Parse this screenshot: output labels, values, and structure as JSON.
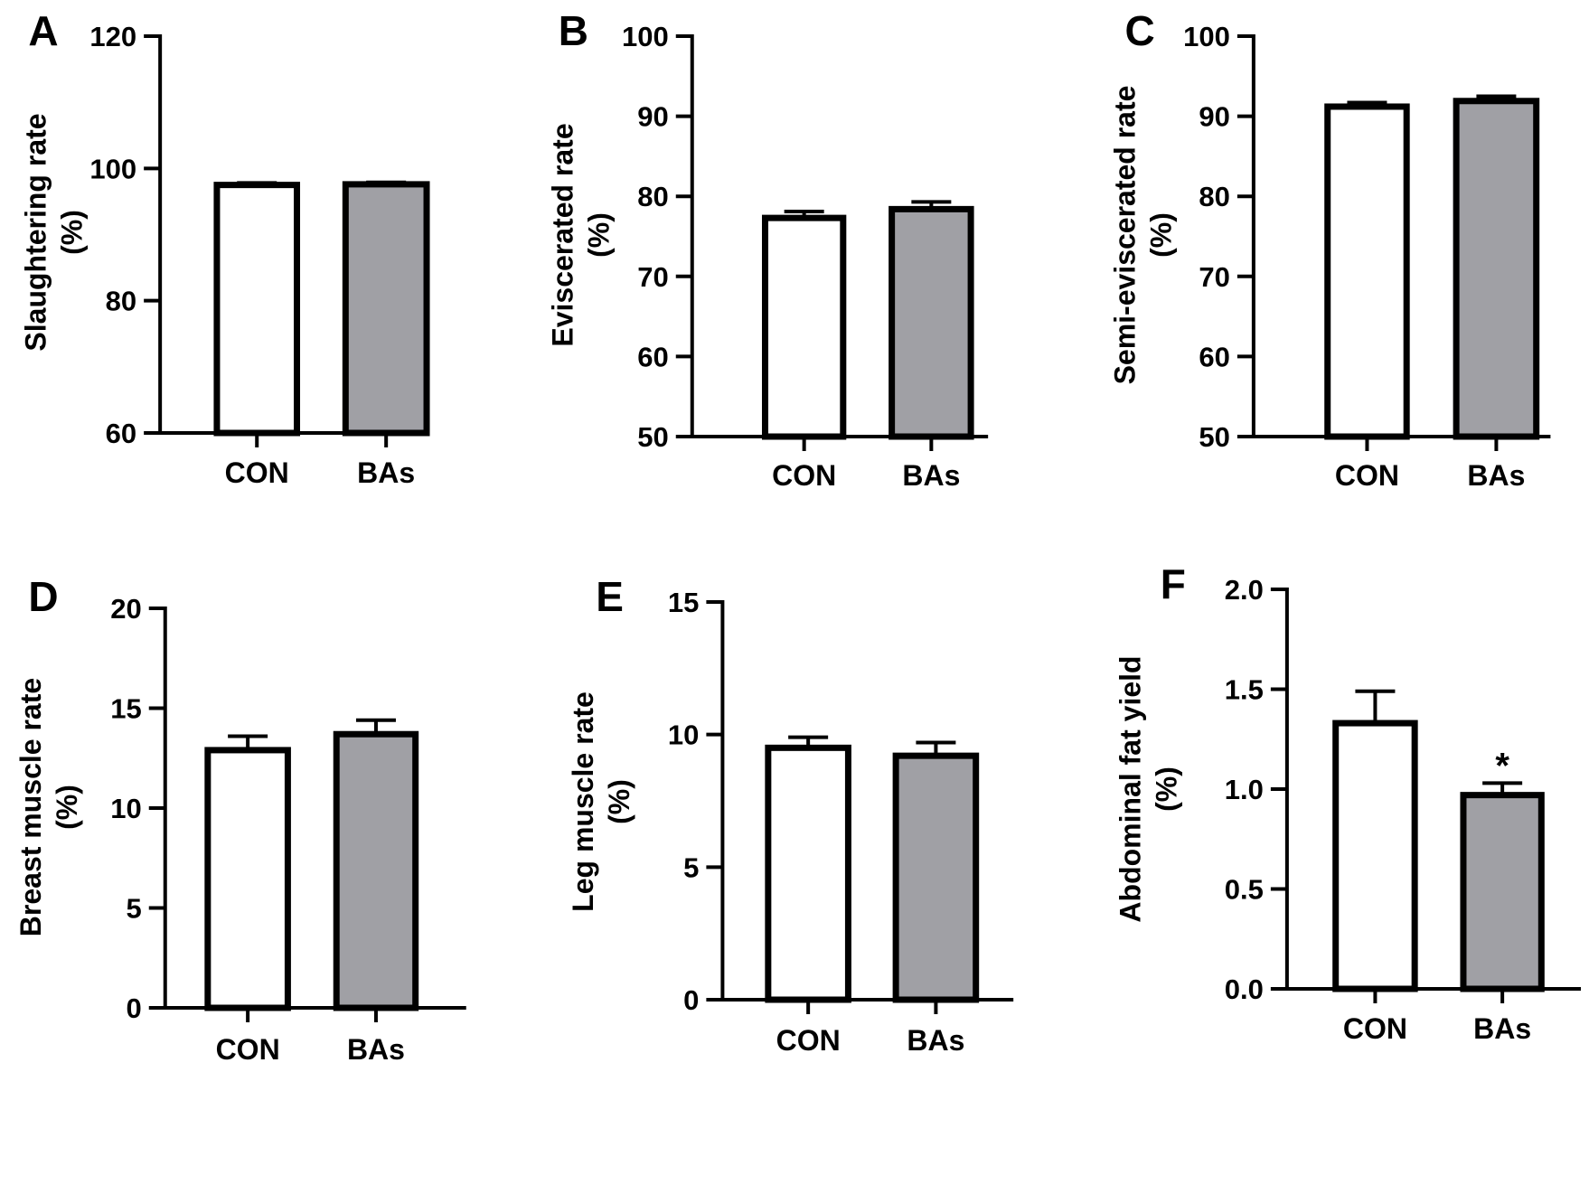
{
  "colors": {
    "con_fill": "#ffffff",
    "bas_fill": "#a0a0a5",
    "stroke": "#000000"
  },
  "chart_data": [
    {
      "panel": "A",
      "type": "bar",
      "ylabel": [
        "Slaughtering rate",
        "(%)"
      ],
      "categories": [
        "CON",
        "BAs"
      ],
      "values": [
        97.5,
        97.6
      ],
      "errors": [
        0.3,
        0.3
      ],
      "ylim": [
        60,
        120
      ],
      "yticks": [
        60,
        80,
        100,
        120
      ],
      "annotations": [
        "",
        ""
      ]
    },
    {
      "panel": "B",
      "type": "bar",
      "ylabel": [
        "Eviscerated rate",
        "(%)"
      ],
      "categories": [
        "CON",
        "BAs"
      ],
      "values": [
        77.3,
        78.4
      ],
      "errors": [
        0.8,
        0.9
      ],
      "ylim": [
        50,
        100
      ],
      "yticks": [
        50,
        60,
        70,
        80,
        90,
        100
      ],
      "annotations": [
        "",
        ""
      ]
    },
    {
      "panel": "C",
      "type": "bar",
      "ylabel": [
        "Semi-eviscerated rate",
        "(%)"
      ],
      "categories": [
        "CON",
        "BAs"
      ],
      "values": [
        91.2,
        91.9
      ],
      "errors": [
        0.5,
        0.6
      ],
      "ylim": [
        50,
        100
      ],
      "yticks": [
        50,
        60,
        70,
        80,
        90,
        100
      ],
      "annotations": [
        "",
        ""
      ]
    },
    {
      "panel": "D",
      "type": "bar",
      "ylabel": [
        "Breast muscle rate",
        "(%)"
      ],
      "categories": [
        "CON",
        "BAs"
      ],
      "values": [
        12.9,
        13.7
      ],
      "errors": [
        0.7,
        0.7
      ],
      "ylim": [
        0,
        20
      ],
      "yticks": [
        0,
        5,
        10,
        15,
        20
      ],
      "annotations": [
        "",
        ""
      ]
    },
    {
      "panel": "E",
      "type": "bar",
      "ylabel": [
        "Leg muscle rate",
        "(%)"
      ],
      "categories": [
        "CON",
        "BAs"
      ],
      "values": [
        9.5,
        9.2
      ],
      "errors": [
        0.4,
        0.5
      ],
      "ylim": [
        0,
        15
      ],
      "yticks": [
        0,
        5,
        10,
        15
      ],
      "annotations": [
        "",
        ""
      ]
    },
    {
      "panel": "F",
      "type": "bar",
      "ylabel": [
        "Abdominal fat yield",
        "(%)"
      ],
      "categories": [
        "CON",
        "BAs"
      ],
      "values": [
        1.33,
        0.97
      ],
      "errors": [
        0.16,
        0.06
      ],
      "ylim": [
        0,
        2
      ],
      "yticks": [
        "0.0",
        "0.5",
        "1.0",
        "1.5",
        "2.0"
      ],
      "annotations": [
        "",
        "*"
      ]
    }
  ]
}
